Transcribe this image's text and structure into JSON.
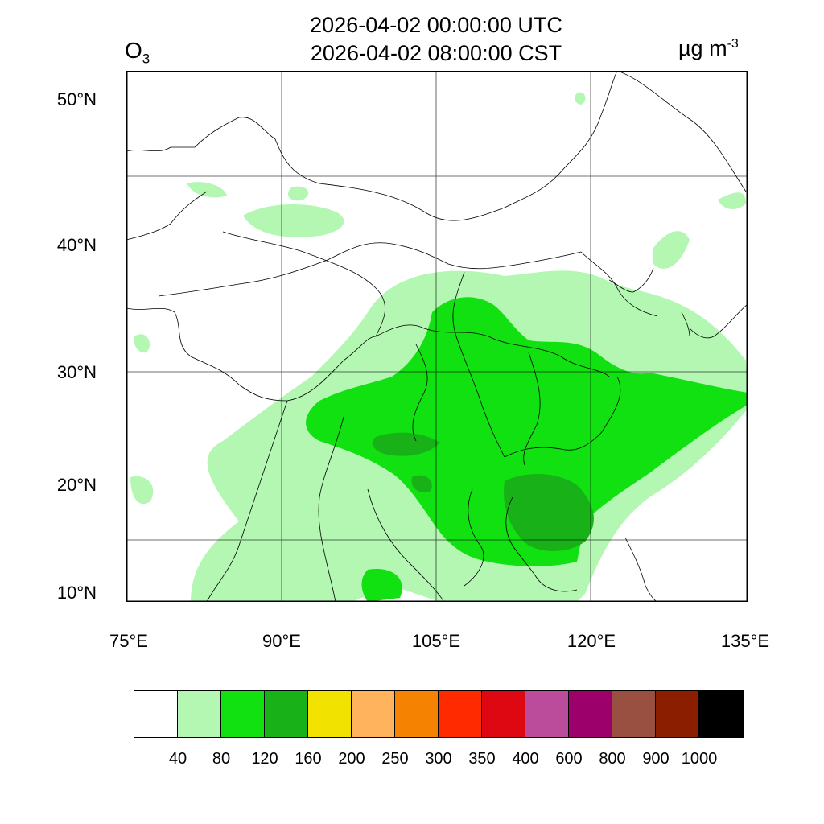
{
  "header": {
    "species_main": "O",
    "species_sub": "3",
    "time_utc": "2026-04-02 00:00:00 UTC",
    "time_cst": "2026-04-02 08:00:00 CST",
    "units_main": "µg m",
    "units_sup": "-3"
  },
  "axes": {
    "lat_labels": [
      "50°N",
      "40°N",
      "30°N",
      "20°N",
      "10°N"
    ],
    "lon_labels": [
      "75°E",
      "90°E",
      "105°E",
      "120°E",
      "135°E"
    ]
  },
  "colorbar": {
    "colors": [
      "#ffffff",
      "#b3f7b3",
      "#11e011",
      "#18b118",
      "#f2e200",
      "#ffb35c",
      "#f58200",
      "#ff2a00",
      "#dd0812",
      "#bb4c9c",
      "#9c006a",
      "#9a5040",
      "#8c1e00",
      "#000000"
    ],
    "labels": [
      "40",
      "80",
      "120",
      "160",
      "200",
      "250",
      "300",
      "350",
      "400",
      "600",
      "800",
      "900",
      "1000"
    ]
  },
  "map": {
    "extent_lon": [
      75,
      135
    ],
    "extent_lat": [
      9.2,
      52.1
    ],
    "gridline_lon": [
      90,
      105,
      120
    ],
    "gridline_lat": [
      15,
      30,
      45
    ],
    "colors": {
      "light_green": "#b3f7b3",
      "green": "#11e011",
      "dark_green": "#18b118",
      "boundary": "#000000"
    }
  }
}
